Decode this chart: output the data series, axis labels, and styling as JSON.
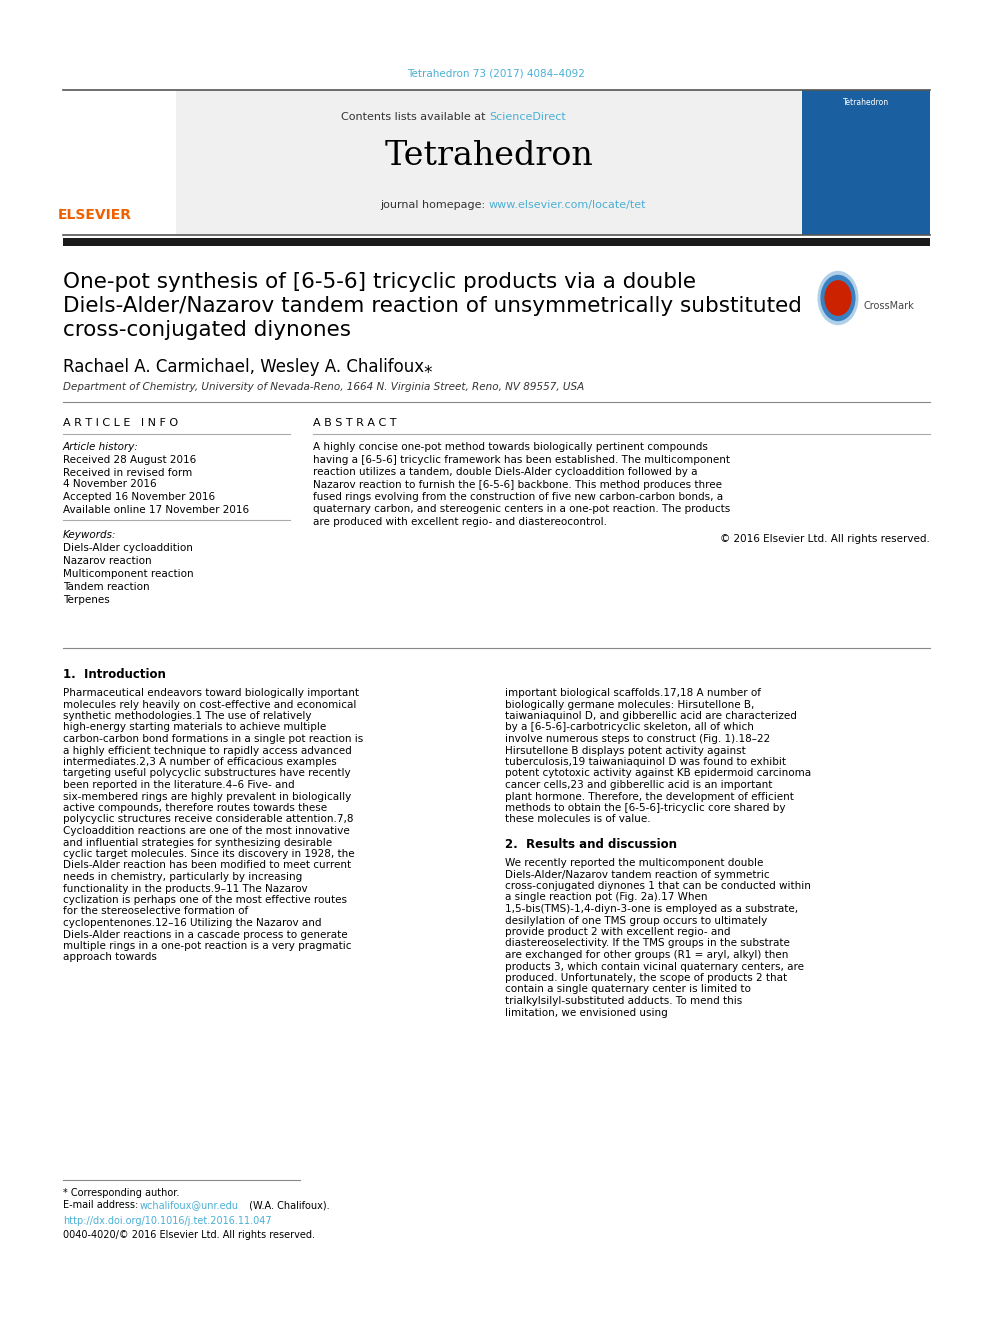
{
  "page_bg": "#ffffff",
  "top_citation": "Tetrahedron 73 (2017) 4084–4092",
  "top_citation_color": "#4bafd4",
  "journal_name": "Tetrahedron",
  "contents_text": "Contents lists available at ",
  "sciencedirect_text": "ScienceDirect",
  "sciencedirect_color": "#4bafd4",
  "homepage_text": "journal homepage: ",
  "homepage_url": "www.elsevier.com/locate/tet",
  "homepage_url_color": "#4bafd4",
  "header_bg": "#f0f0f0",
  "elsevier_color": "#f06000",
  "article_title_line1": "One-pot synthesis of [6-5-6] tricyclic products via a double",
  "article_title_line2": "Diels-Alder/Nazarov tandem reaction of unsymmetrically substituted",
  "article_title_line3": "cross-conjugated diynones",
  "authors": "Rachael A. Carmichael, Wesley A. Chalifoux",
  "affiliation": "Department of Chemistry, University of Nevada-Reno, 1664 N. Virginia Street, Reno, NV 89557, USA",
  "article_info_header": "A R T I C L E   I N F O",
  "abstract_header": "A B S T R A C T",
  "article_history_label": "Article history:",
  "received": "Received 28 August 2016",
  "revised": "Received in revised form",
  "revised2": "4 November 2016",
  "accepted": "Accepted 16 November 2016",
  "available": "Available online 17 November 2016",
  "keywords_label": "Keywords:",
  "keywords": [
    "Diels-Alder cycloaddition",
    "Nazarov reaction",
    "Multicomponent reaction",
    "Tandem reaction",
    "Terpenes"
  ],
  "abstract_text": "A highly concise one-pot method towards biologically pertinent compounds having a [6-5-6] tricyclic framework has been established. The multicomponent reaction utilizes a tandem, double Diels-Alder cycloaddition followed by a Nazarov reaction to furnish the [6-5-6] backbone. This method produces three fused rings evolving from the construction of five new carbon-carbon bonds, a quaternary carbon, and stereogenic centers in a one-pot reaction. The products are produced with excellent regio- and diastereocontrol.",
  "copyright_text": "© 2016 Elsevier Ltd. All rights reserved.",
  "intro_header": "1.  Introduction",
  "intro_body": "Pharmaceutical endeavors toward biologically important molecules rely heavily on cost-effective and economical synthetic methodologies.1 The use of relatively high-energy starting materials to achieve multiple carbon-carbon bond formations in a single pot reaction is a highly efficient technique to rapidly access advanced intermediates.2,3 A number of efficacious examples targeting useful polycyclic substructures have recently been reported in the literature.4–6 Five- and six-membered rings are highly prevalent in biologically active compounds, therefore routes towards these polycyclic structures receive considerable attention.7,8 Cycloaddition reactions are one of the most innovative and influential strategies for synthesizing desirable cyclic target molecules. Since its discovery in 1928, the Diels-Alder reaction has been modified to meet current needs in chemistry, particularly by increasing functionality in the products.9–11 The Nazarov cyclization is perhaps one of the most effective routes for the stereoselective formation of cyclopentenones.12–16 Utilizing the Nazarov and Diels-Alder reactions in a cascade process to generate multiple rings in a one-pot reaction is a very pragmatic approach towards",
  "right_intro": "important biological scaffolds.17,18 A number of biologically germane molecules: Hirsutellone B, taiwaniaquinol D, and gibberellic acid are characterized by a [6-5-6]-carbotricyclic skeleton, all of which involve numerous steps to construct (Fig. 1).18–22 Hirsutellone B displays potent activity against tuberculosis,19 taiwaniaquinol D was found to exhibit potent cytotoxic activity against KB epidermoid carcinoma cancer cells,23 and gibberellic acid is an important plant hormone. Therefore, the development of efficient methods to obtain the [6-5-6]-tricyclic core shared by these molecules is of value.",
  "results_header": "2.  Results and discussion",
  "results_body": "We recently reported the multicomponent double Diels-Alder/Nazarov tandem reaction of symmetric cross-conjugated diynones 1 that can be conducted within a single reaction pot (Fig. 2a).17 When 1,5-bis(TMS)-1,4-diyn-3-one is employed as a substrate, desilylation of one TMS group occurs to ultimately provide product 2 with excellent regio- and diastereoselectivity. If the TMS groups in the substrate are exchanged for other groups (R1 = aryl, alkyl) then products 3, which contain vicinal quaternary centers, are produced. Unfortunately, the scope of products 2 that contain a single quaternary center is limited to trialkylsilyl-substituted adducts. To mend this limitation, we envisioned using",
  "footer_star": "* Corresponding author.",
  "footer_email_pre": "E-mail address: ",
  "footer_email": "wchalifoux@unr.edu",
  "footer_email_post": " (W.A. Chalifoux).",
  "footer_doi": "http://dx.doi.org/10.1016/j.tet.2016.11.047",
  "footer_issn": "0040-4020/© 2016 Elsevier Ltd. All rights reserved.",
  "link_color": "#4bafd4"
}
